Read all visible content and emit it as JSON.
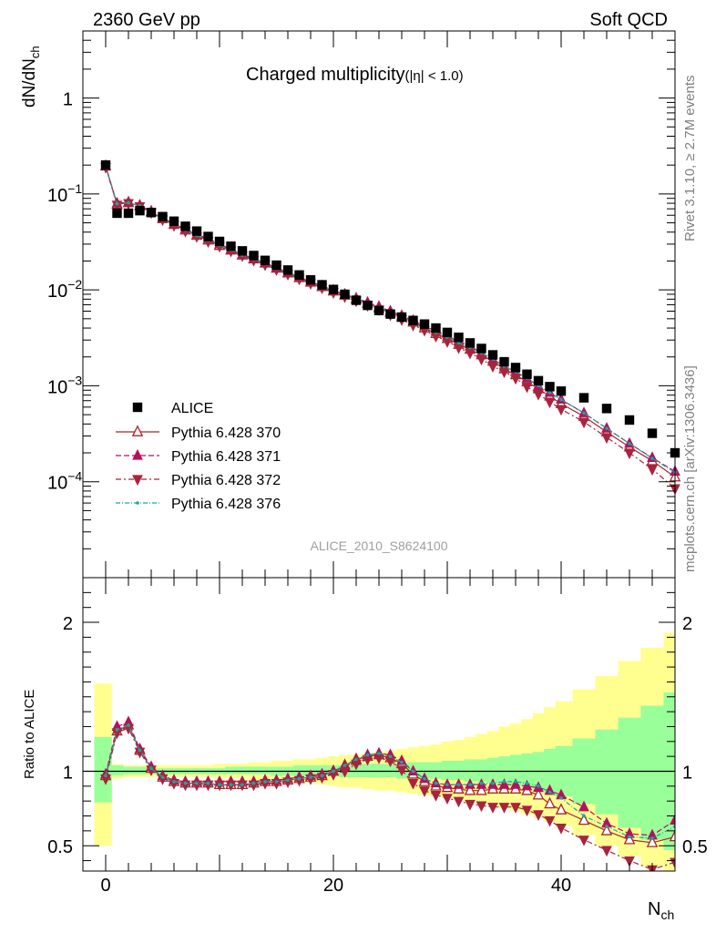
{
  "header": {
    "left": "2360 GeV pp",
    "right": "Soft QCD"
  },
  "side_labels": {
    "rivet": "Rivet 3.1.10, ≥ 2.7M events",
    "mcplots": "mcplots.cern.ch [arXiv:1306.3436]"
  },
  "chart_data": [
    {
      "type": "scatter",
      "panel": "main",
      "title_main": "Charged multiplicity",
      "title_sub": "(|η| < 1.0)",
      "ylabel_main": "dN/dN",
      "ylabel_sub": "ch",
      "xlabel_main": "N",
      "xlabel_sub": "ch",
      "y_scale": "log",
      "ylim": [
        1e-05,
        5
      ],
      "xlim": [
        -2,
        50
      ],
      "xticks": [
        0,
        20,
        40
      ],
      "yticks": [
        {
          "value": 1,
          "label": "1",
          "exp": ""
        },
        {
          "value": 0.1,
          "label": "10",
          "exp": "−1"
        },
        {
          "value": 0.01,
          "label": "10",
          "exp": "−2"
        },
        {
          "value": 0.001,
          "label": "10",
          "exp": "−3"
        },
        {
          "value": 0.0001,
          "label": "10",
          "exp": "−4"
        }
      ],
      "watermark": "ALICE_2010_S8624100",
      "x": [
        0,
        1,
        2,
        3,
        4,
        5,
        6,
        7,
        8,
        9,
        10,
        11,
        12,
        13,
        14,
        15,
        16,
        17,
        18,
        19,
        20,
        21,
        22,
        23,
        24,
        25,
        26,
        27,
        28,
        29,
        30,
        31,
        32,
        33,
        34,
        35,
        36,
        37,
        38,
        39,
        40,
        42,
        44,
        46,
        48,
        50
      ],
      "series": [
        {
          "name": "ALICE",
          "color": "#000000",
          "marker": "square",
          "values": [
            0.2,
            0.063,
            0.063,
            0.067,
            0.064,
            0.058,
            0.052,
            0.046,
            0.041,
            0.036,
            0.032,
            0.0285,
            0.0255,
            0.0228,
            0.0203,
            0.0181,
            0.0161,
            0.0143,
            0.0127,
            0.0113,
            0.0101,
            0.009,
            0.0078,
            0.0069,
            0.0061,
            0.0056,
            0.0052,
            0.0048,
            0.0044,
            0.004,
            0.0036,
            0.0032,
            0.0028,
            0.00245,
            0.0021,
            0.00178,
            0.00155,
            0.00132,
            0.00113,
            0.00098,
            0.00088,
            0.00075,
            0.00058,
            0.00044,
            0.00032,
            0.0002
          ]
        },
        {
          "name": "Pythia 6.428 370",
          "color": "#a8242c",
          "marker": "triangle-up-open",
          "dash": "",
          "values": [
            0.195,
            0.078,
            0.081,
            0.075,
            0.065,
            0.055,
            0.048,
            0.042,
            0.037,
            0.033,
            0.029,
            0.026,
            0.023,
            0.021,
            0.019,
            0.0168,
            0.015,
            0.0134,
            0.012,
            0.0108,
            0.0097,
            0.0088,
            0.008,
            0.0072,
            0.0065,
            0.0058,
            0.0052,
            0.0046,
            0.004,
            0.0035,
            0.0031,
            0.0027,
            0.0024,
            0.0021,
            0.0018,
            0.0015,
            0.0013,
            0.0011,
            0.00093,
            0.00078,
            0.00065,
            0.00048,
            0.00033,
            0.00023,
            0.000165,
            0.000112
          ]
        },
        {
          "name": "Pythia 6.428 371",
          "color": "#b5115c",
          "marker": "triangle-up",
          "dash": "6,3",
          "values": [
            0.195,
            0.08,
            0.082,
            0.076,
            0.066,
            0.056,
            0.049,
            0.043,
            0.038,
            0.034,
            0.03,
            0.0265,
            0.0235,
            0.0212,
            0.0191,
            0.017,
            0.0152,
            0.0136,
            0.0122,
            0.011,
            0.0099,
            0.009,
            0.0082,
            0.0074,
            0.0067,
            0.006,
            0.0054,
            0.0048,
            0.0042,
            0.0037,
            0.0033,
            0.0029,
            0.0026,
            0.0022,
            0.0019,
            0.0016,
            0.0014,
            0.0012,
            0.001,
            0.00085,
            0.00072,
            0.00052,
            0.00036,
            0.00025,
            0.000178,
            0.000128
          ]
        },
        {
          "name": "Pythia 6.428 372",
          "color": "#a8243c",
          "marker": "triangle-down",
          "dash": "6,3,2,3",
          "values": [
            0.19,
            0.077,
            0.08,
            0.074,
            0.064,
            0.054,
            0.047,
            0.041,
            0.036,
            0.032,
            0.0285,
            0.0255,
            0.0227,
            0.0204,
            0.0183,
            0.0163,
            0.0146,
            0.013,
            0.0117,
            0.0105,
            0.0094,
            0.0085,
            0.0077,
            0.0069,
            0.0062,
            0.0055,
            0.0049,
            0.0043,
            0.0038,
            0.0033,
            0.0029,
            0.0025,
            0.0022,
            0.0019,
            0.0016,
            0.0014,
            0.0012,
            0.00098,
            0.00082,
            0.00068,
            0.00057,
            0.00042,
            0.00029,
            0.0002,
            0.000135,
            8.5e-05
          ]
        },
        {
          "name": "Pythia 6.428 376",
          "color": "#16a8a0",
          "marker": "dot",
          "dash": "5,2,1,2",
          "values": [
            0.195,
            0.079,
            0.081,
            0.075,
            0.065,
            0.055,
            0.048,
            0.042,
            0.037,
            0.033,
            0.029,
            0.026,
            0.023,
            0.021,
            0.019,
            0.0168,
            0.015,
            0.0134,
            0.012,
            0.0108,
            0.0097,
            0.0088,
            0.008,
            0.0072,
            0.0066,
            0.0059,
            0.0053,
            0.0047,
            0.0041,
            0.0036,
            0.0032,
            0.0028,
            0.0025,
            0.0022,
            0.0019,
            0.0016,
            0.0014,
            0.0012,
            0.001,
            0.00085,
            0.00072,
            0.00052,
            0.00036,
            0.00025,
            0.000175,
            0.000125
          ]
        }
      ]
    },
    {
      "type": "scatter",
      "panel": "ratio",
      "ylabel": "Ratio to ALICE",
      "ylim": [
        0.33,
        2.3
      ],
      "xlim": [
        -2,
        50
      ],
      "xticks": [
        0,
        20,
        40
      ],
      "yticks": [
        0.5,
        1,
        2
      ],
      "reference_line": 1,
      "x": [
        0,
        1,
        2,
        3,
        4,
        5,
        6,
        7,
        8,
        9,
        10,
        11,
        12,
        13,
        14,
        15,
        16,
        17,
        18,
        19,
        20,
        21,
        22,
        23,
        24,
        25,
        26,
        27,
        28,
        29,
        30,
        31,
        32,
        33,
        34,
        35,
        36,
        37,
        38,
        39,
        40,
        42,
        44,
        46,
        48,
        50
      ],
      "bands": {
        "green_lo": [
          0.79,
          0.97,
          0.98,
          0.98,
          0.98,
          0.98,
          0.98,
          0.98,
          0.98,
          0.98,
          0.98,
          0.98,
          0.98,
          0.98,
          0.98,
          0.97,
          0.97,
          0.97,
          0.97,
          0.97,
          0.97,
          0.96,
          0.96,
          0.96,
          0.96,
          0.96,
          0.95,
          0.95,
          0.95,
          0.95,
          0.94,
          0.94,
          0.93,
          0.93,
          0.92,
          0.91,
          0.9,
          0.89,
          0.87,
          0.85,
          0.83,
          0.78,
          0.71,
          0.62,
          0.54,
          0.47
        ],
        "green_hi": [
          1.23,
          1.04,
          1.03,
          1.03,
          1.02,
          1.02,
          1.02,
          1.02,
          1.02,
          1.02,
          1.02,
          1.03,
          1.03,
          1.03,
          1.03,
          1.03,
          1.03,
          1.04,
          1.04,
          1.04,
          1.04,
          1.04,
          1.05,
          1.05,
          1.05,
          1.05,
          1.05,
          1.06,
          1.06,
          1.06,
          1.07,
          1.07,
          1.08,
          1.08,
          1.09,
          1.1,
          1.11,
          1.12,
          1.13,
          1.15,
          1.17,
          1.22,
          1.28,
          1.36,
          1.44,
          1.53
        ],
        "yellow_lo": [
          0.5,
          0.95,
          0.96,
          0.96,
          0.96,
          0.96,
          0.96,
          0.96,
          0.96,
          0.96,
          0.95,
          0.95,
          0.95,
          0.94,
          0.94,
          0.93,
          0.93,
          0.92,
          0.92,
          0.91,
          0.9,
          0.89,
          0.89,
          0.88,
          0.87,
          0.87,
          0.86,
          0.85,
          0.84,
          0.83,
          0.82,
          0.81,
          0.8,
          0.78,
          0.77,
          0.75,
          0.73,
          0.71,
          0.69,
          0.66,
          0.63,
          0.57,
          0.5,
          0.43,
          0.36,
          0.3
        ],
        "yellow_hi": [
          1.59,
          1.05,
          1.04,
          1.04,
          1.04,
          1.04,
          1.04,
          1.04,
          1.04,
          1.04,
          1.05,
          1.05,
          1.05,
          1.06,
          1.06,
          1.07,
          1.07,
          1.08,
          1.08,
          1.09,
          1.1,
          1.11,
          1.11,
          1.12,
          1.13,
          1.14,
          1.15,
          1.16,
          1.17,
          1.18,
          1.2,
          1.21,
          1.23,
          1.25,
          1.27,
          1.3,
          1.32,
          1.35,
          1.39,
          1.43,
          1.47,
          1.55,
          1.64,
          1.74,
          1.83,
          1.93
        ]
      },
      "series": [
        {
          "name": "Pythia 6.428 370",
          "color": "#a8242c",
          "marker": "triangle-up-open",
          "dash": "",
          "values": [
            0.97,
            1.27,
            1.31,
            1.14,
            1.02,
            0.96,
            0.93,
            0.92,
            0.92,
            0.92,
            0.91,
            0.91,
            0.91,
            0.92,
            0.93,
            0.93,
            0.94,
            0.95,
            0.96,
            0.97,
            1.0,
            1.04,
            1.08,
            1.1,
            1.11,
            1.09,
            1.05,
            0.98,
            0.93,
            0.9,
            0.89,
            0.88,
            0.87,
            0.87,
            0.88,
            0.88,
            0.88,
            0.87,
            0.84,
            0.78,
            0.74,
            0.67,
            0.6,
            0.54,
            0.52,
            0.56
          ]
        },
        {
          "name": "Pythia 6.428 371",
          "color": "#b5115c",
          "marker": "triangle-up",
          "dash": "6,3",
          "values": [
            0.98,
            1.3,
            1.33,
            1.15,
            1.03,
            0.97,
            0.94,
            0.93,
            0.93,
            0.93,
            0.93,
            0.93,
            0.93,
            0.93,
            0.94,
            0.94,
            0.95,
            0.96,
            0.97,
            0.98,
            1.0,
            1.03,
            1.07,
            1.11,
            1.12,
            1.11,
            1.07,
            1.0,
            0.95,
            0.92,
            0.91,
            0.91,
            0.91,
            0.91,
            0.91,
            0.91,
            0.91,
            0.9,
            0.89,
            0.87,
            0.84,
            0.76,
            0.65,
            0.58,
            0.57,
            0.67
          ]
        },
        {
          "name": "Pythia 6.428 372",
          "color": "#a8243c",
          "marker": "triangle-down",
          "dash": "6,3,2,3",
          "values": [
            0.95,
            1.26,
            1.29,
            1.13,
            1.01,
            0.95,
            0.92,
            0.91,
            0.91,
            0.91,
            0.91,
            0.91,
            0.91,
            0.91,
            0.92,
            0.92,
            0.93,
            0.94,
            0.95,
            0.96,
            0.98,
            1.0,
            1.05,
            1.08,
            1.09,
            1.07,
            1.01,
            0.92,
            0.87,
            0.84,
            0.82,
            0.8,
            0.78,
            0.77,
            0.76,
            0.76,
            0.76,
            0.74,
            0.71,
            0.67,
            0.62,
            0.54,
            0.47,
            0.4,
            0.34,
            0.39
          ]
        },
        {
          "name": "Pythia 6.428 376",
          "color": "#16a8a0",
          "marker": "dot",
          "dash": "5,2,1,2",
          "values": [
            0.97,
            1.28,
            1.31,
            1.14,
            1.02,
            0.96,
            0.93,
            0.92,
            0.92,
            0.92,
            0.91,
            0.91,
            0.91,
            0.92,
            0.93,
            0.93,
            0.94,
            0.95,
            0.96,
            0.97,
            1.0,
            1.04,
            1.08,
            1.11,
            1.12,
            1.1,
            1.06,
            1.0,
            0.95,
            0.92,
            0.91,
            0.91,
            0.91,
            0.92,
            0.92,
            0.93,
            0.93,
            0.92,
            0.9,
            0.86,
            0.82,
            0.7,
            0.63,
            0.56,
            0.55,
            0.63
          ]
        }
      ]
    }
  ]
}
